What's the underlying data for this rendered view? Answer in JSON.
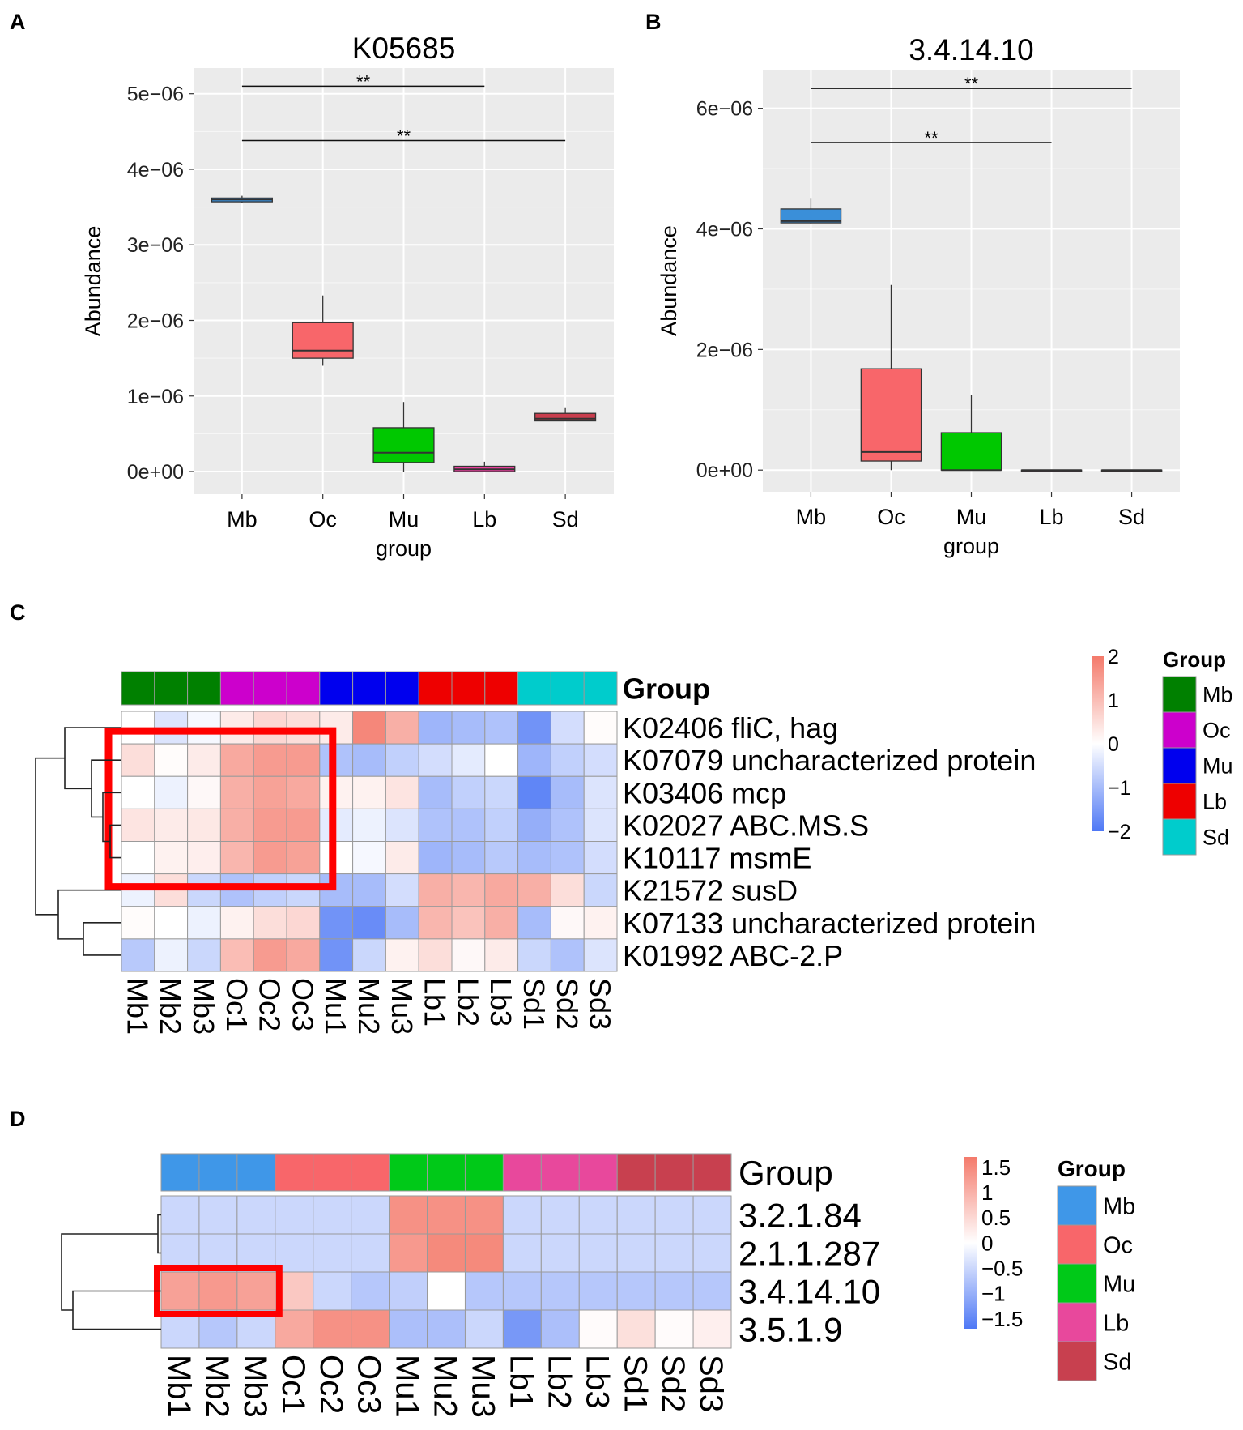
{
  "panels": {
    "a": "A",
    "b": "B",
    "c": "C",
    "d": "D"
  },
  "chart_data": [
    {
      "type": "box",
      "title": "K05685",
      "xlabel": "group",
      "ylabel": "Abundance",
      "categories": [
        "Mb",
        "Oc",
        "Mu",
        "Lb",
        "Sd"
      ],
      "colors": [
        "#3a8fd9",
        "#f8666a",
        "#00c800",
        "#e8409c",
        "#c93d4d"
      ],
      "ylim": [
        -3e-07,
        5.34e-06
      ],
      "yticks": [
        0,
        1e-06,
        2e-06,
        3e-06,
        4e-06,
        5e-06
      ],
      "ytick_labels": [
        "0e+00",
        "1e−06",
        "2e−06",
        "3e−06",
        "4e−06",
        "5e−06"
      ],
      "grid": true,
      "boxes": [
        {
          "min": 3.55e-06,
          "q1": 3.57e-06,
          "median": 3.6e-06,
          "q3": 3.62e-06,
          "max": 3.65e-06
        },
        {
          "min": 1.4e-06,
          "q1": 1.5e-06,
          "median": 1.6e-06,
          "q3": 1.97e-06,
          "max": 2.33e-06
        },
        {
          "min": 0,
          "q1": 1.2e-07,
          "median": 2.5e-07,
          "q3": 5.8e-07,
          "max": 9.2e-07
        },
        {
          "min": 0,
          "q1": 0,
          "median": 3e-08,
          "q3": 7e-08,
          "max": 1.3e-07
        },
        {
          "min": 6.7e-07,
          "q1": 6.7e-07,
          "median": 7e-07,
          "q3": 7.7e-07,
          "max": 8.5e-07
        }
      ],
      "significance": [
        {
          "from": "Mb",
          "to": "Lb",
          "y": 5.1e-06,
          "label": "**"
        },
        {
          "from": "Mb",
          "to": "Sd",
          "y": 4.38e-06,
          "label": "**"
        }
      ]
    },
    {
      "type": "box",
      "title": "3.4.14.10",
      "xlabel": "group",
      "ylabel": "Abundance",
      "categories": [
        "Mb",
        "Oc",
        "Mu",
        "Lb",
        "Sd"
      ],
      "colors": [
        "#3a8fd9",
        "#f8666a",
        "#00c800",
        "#e8409c",
        "#c93d4d"
      ],
      "ylim": [
        -3.6e-07,
        6.64e-06
      ],
      "yticks": [
        0,
        2e-06,
        4e-06,
        6e-06
      ],
      "ytick_labels": [
        "0e+00",
        "2e−06",
        "4e−06",
        "6e−06"
      ],
      "grid": true,
      "boxes": [
        {
          "min": 4.08e-06,
          "q1": 4.1e-06,
          "median": 4.13e-06,
          "q3": 4.33e-06,
          "max": 4.5e-06
        },
        {
          "min": 0,
          "q1": 1.5e-07,
          "median": 3e-07,
          "q3": 1.68e-06,
          "max": 3.07e-06
        },
        {
          "min": 0,
          "q1": 0,
          "median": 0,
          "q3": 6.2e-07,
          "max": 1.25e-06
        },
        {
          "min": 0,
          "q1": 0,
          "median": 0,
          "q3": 0,
          "max": 0
        },
        {
          "min": 0,
          "q1": 0,
          "median": 0,
          "q3": 0,
          "max": 0
        }
      ],
      "significance": [
        {
          "from": "Mb",
          "to": "Sd",
          "y": 6.33e-06,
          "label": "**"
        },
        {
          "from": "Mb",
          "to": "Lb",
          "y": 5.43e-06,
          "label": "**"
        }
      ]
    },
    {
      "type": "heatmap",
      "annotation_label": "Group",
      "columns": [
        "Mb1",
        "Mb2",
        "Mb3",
        "Oc1",
        "Oc2",
        "Oc3",
        "Mu1",
        "Mu2",
        "Mu3",
        "Lb1",
        "Lb2",
        "Lb3",
        "Sd1",
        "Sd2",
        "Sd3"
      ],
      "column_groups": [
        "Mb",
        "Mb",
        "Mb",
        "Oc",
        "Oc",
        "Oc",
        "Mu",
        "Mu",
        "Mu",
        "Lb",
        "Lb",
        "Lb",
        "Sd",
        "Sd",
        "Sd"
      ],
      "rows": [
        "K02406 fliC, hag",
        "K07079 uncharacterized protein",
        "K03406 mcp",
        "K02027 ABC.MS.S",
        "K10117 msmE",
        "K21572 susD",
        "K07133 uncharacterized protein",
        "K01992 ABC-2.P"
      ],
      "values": [
        [
          0,
          -0.4,
          -0.1,
          0.3,
          0.6,
          0.5,
          0.3,
          1.8,
          1.2,
          -1.1,
          -1.0,
          -0.9,
          -1.6,
          -0.5,
          0.05
        ],
        [
          0.5,
          0.05,
          0.3,
          1.3,
          1.5,
          1.5,
          -0.9,
          -1.0,
          -0.7,
          -0.5,
          -0.3,
          0,
          -1.1,
          -0.7,
          -0.5
        ],
        [
          0,
          -0.2,
          0.1,
          1.2,
          1.4,
          1.3,
          0.2,
          0.2,
          0.4,
          -1.0,
          -0.7,
          -0.6,
          -1.8,
          -1.0,
          -0.4
        ],
        [
          0.4,
          0.3,
          0.35,
          1.2,
          1.5,
          1.5,
          -0.3,
          -0.2,
          -0.4,
          -0.9,
          -0.9,
          -0.7,
          -1.2,
          -0.9,
          -0.4
        ],
        [
          0,
          0.2,
          0.25,
          1.1,
          1.5,
          1.4,
          0,
          -0.1,
          0.3,
          -1.1,
          -1.0,
          -0.8,
          -1.0,
          -0.9,
          -0.5
        ],
        [
          -0.2,
          0.5,
          -0.6,
          -0.9,
          -0.7,
          -0.6,
          -1.0,
          -1.0,
          -0.5,
          1.2,
          1.1,
          1.3,
          1.2,
          0.5,
          -0.6
        ],
        [
          0.05,
          0,
          -0.2,
          0.2,
          0.5,
          0.6,
          -1.6,
          -1.7,
          -1.0,
          1.1,
          0.9,
          1.2,
          -1.0,
          0.1,
          0.2
        ],
        [
          -0.8,
          -0.2,
          -0.6,
          1.0,
          1.5,
          1.3,
          -1.6,
          -0.6,
          0.2,
          0.5,
          0.1,
          0.3,
          -0.6,
          -0.9,
          -0.4
        ]
      ],
      "scale_range": [
        -2,
        2
      ],
      "scale_ticks": [
        "2",
        "1",
        "0",
        "−1",
        "−2"
      ],
      "scale_tick_values": [
        2,
        1,
        0,
        -1,
        -2
      ],
      "scale_colors": {
        "low": "#4e78f5",
        "mid": "#ffffff",
        "high": "#f47a6b"
      },
      "legend_title": "Group",
      "legend": [
        {
          "label": "Mb",
          "color": "#008000"
        },
        {
          "label": "Oc",
          "color": "#cc00cc"
        },
        {
          "label": "Mu",
          "color": "#0000ee"
        },
        {
          "label": "Lb",
          "color": "#ee0000"
        },
        {
          "label": "Sd",
          "color": "#00cccc"
        }
      ],
      "highlight": {
        "rows": [
          1,
          4
        ],
        "cols": [
          0,
          5
        ],
        "color": "#ff0000"
      }
    },
    {
      "type": "heatmap",
      "annotation_label": "Group",
      "columns": [
        "Mb1",
        "Mb2",
        "Mb3",
        "Oc1",
        "Oc2",
        "Oc3",
        "Mu1",
        "Mu2",
        "Mu3",
        "Lb1",
        "Lb2",
        "Lb3",
        "Sd1",
        "Sd2",
        "Sd3"
      ],
      "column_groups": [
        "Mb",
        "Mb",
        "Mb",
        "Oc",
        "Oc",
        "Oc",
        "Mu",
        "Mu",
        "Mu",
        "Lb",
        "Lb",
        "Lb",
        "Sd",
        "Sd",
        "Sd"
      ],
      "rows": [
        "3.2.1.84",
        "2.1.1.287",
        "3.4.14.10",
        "3.5.1.9"
      ],
      "values": [
        [
          -0.5,
          -0.5,
          -0.5,
          -0.5,
          -0.5,
          -0.5,
          1.4,
          1.4,
          1.4,
          -0.5,
          -0.5,
          -0.5,
          -0.5,
          -0.5,
          -0.5
        ],
        [
          -0.5,
          -0.5,
          -0.5,
          -0.5,
          -0.5,
          -0.5,
          1.3,
          1.5,
          1.5,
          -0.5,
          -0.5,
          -0.5,
          -0.5,
          -0.5,
          -0.5
        ],
        [
          1.2,
          1.3,
          1.2,
          0.7,
          -0.5,
          -0.7,
          -0.6,
          0.0,
          -0.7,
          -0.7,
          -0.7,
          -0.7,
          -0.7,
          -0.7,
          -0.7
        ],
        [
          -0.5,
          -0.7,
          -0.5,
          1.1,
          1.4,
          1.4,
          -0.8,
          -0.8,
          -0.5,
          -1.3,
          -0.8,
          0.05,
          0.4,
          0.05,
          0.2
        ]
      ],
      "scale_range": [
        -1.7,
        1.7
      ],
      "scale_ticks": [
        "1.5",
        "1",
        "0.5",
        "0",
        "−0.5",
        "−1",
        "−1.5"
      ],
      "scale_tick_values": [
        1.5,
        1,
        0.5,
        0,
        -0.5,
        -1,
        -1.5
      ],
      "scale_colors": {
        "low": "#4e78f5",
        "mid": "#ffffff",
        "high": "#f47a6b"
      },
      "legend_title": "Group",
      "legend": [
        {
          "label": "Mb",
          "color": "#3f97e8"
        },
        {
          "label": "Oc",
          "color": "#f8666a"
        },
        {
          "label": "Mu",
          "color": "#00c918"
        },
        {
          "label": "Lb",
          "color": "#e8489c"
        },
        {
          "label": "Sd",
          "color": "#c8404f"
        }
      ],
      "highlight": {
        "rows": [
          2,
          2
        ],
        "cols": [
          0,
          2
        ],
        "color": "#ff0000"
      }
    }
  ]
}
